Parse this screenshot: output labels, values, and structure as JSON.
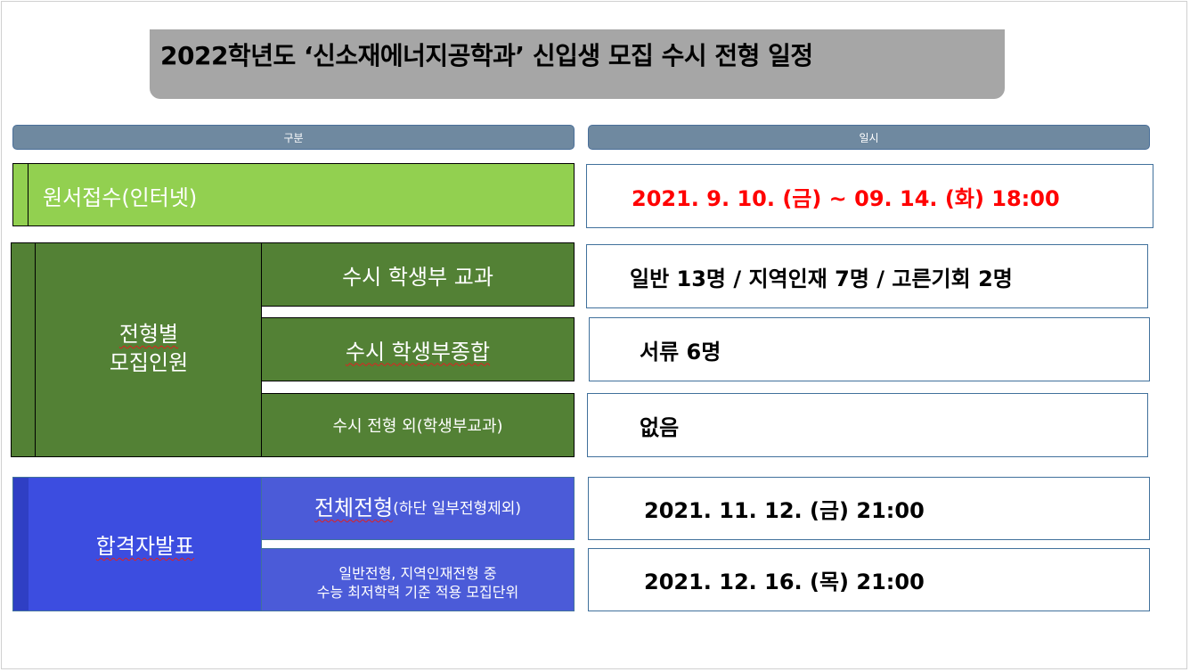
{
  "title": "2022학년도 ‘신소재에너지공학과’ 신입생 모집 수시 전형 일정",
  "headers": {
    "category": "구분",
    "schedule": "일시"
  },
  "application": {
    "label": "원서접수(인터넷)",
    "date": "2021. 9. 10. (금) ~ 09. 14. (화) 18:00",
    "date_color": "#ff0000"
  },
  "quota": {
    "label_line1": "전형별",
    "label_line2": "모집인원",
    "rows": [
      {
        "type": "수시 학생부 교과",
        "value": "일반 13명 / 지역인재 7명 / 고른기회 2명"
      },
      {
        "type": "수시 학생부종합",
        "value": "서류 6명"
      },
      {
        "type": "수시 전형 외(학생부교과)",
        "value": "없음"
      }
    ]
  },
  "announcement": {
    "label": "합격자발표",
    "rows": [
      {
        "type_main": "전체전형",
        "type_sub": "(하단 일부전형제외)",
        "value": "2021. 11. 12. (금) 21:00"
      },
      {
        "type_line1": "일반전형, 지역인재전형 중",
        "type_line2": "수능 최저학력 기준 적용 모집단위",
        "value": "2021. 12. 16. (목) 21:00"
      }
    ]
  },
  "colors": {
    "light_green": "#92d050",
    "dark_green": "#538135",
    "blue": "#3c4de0",
    "blue_sub": "#4b5bd8",
    "header": "#6f89a0",
    "title_bg": "#a6a6a6"
  }
}
